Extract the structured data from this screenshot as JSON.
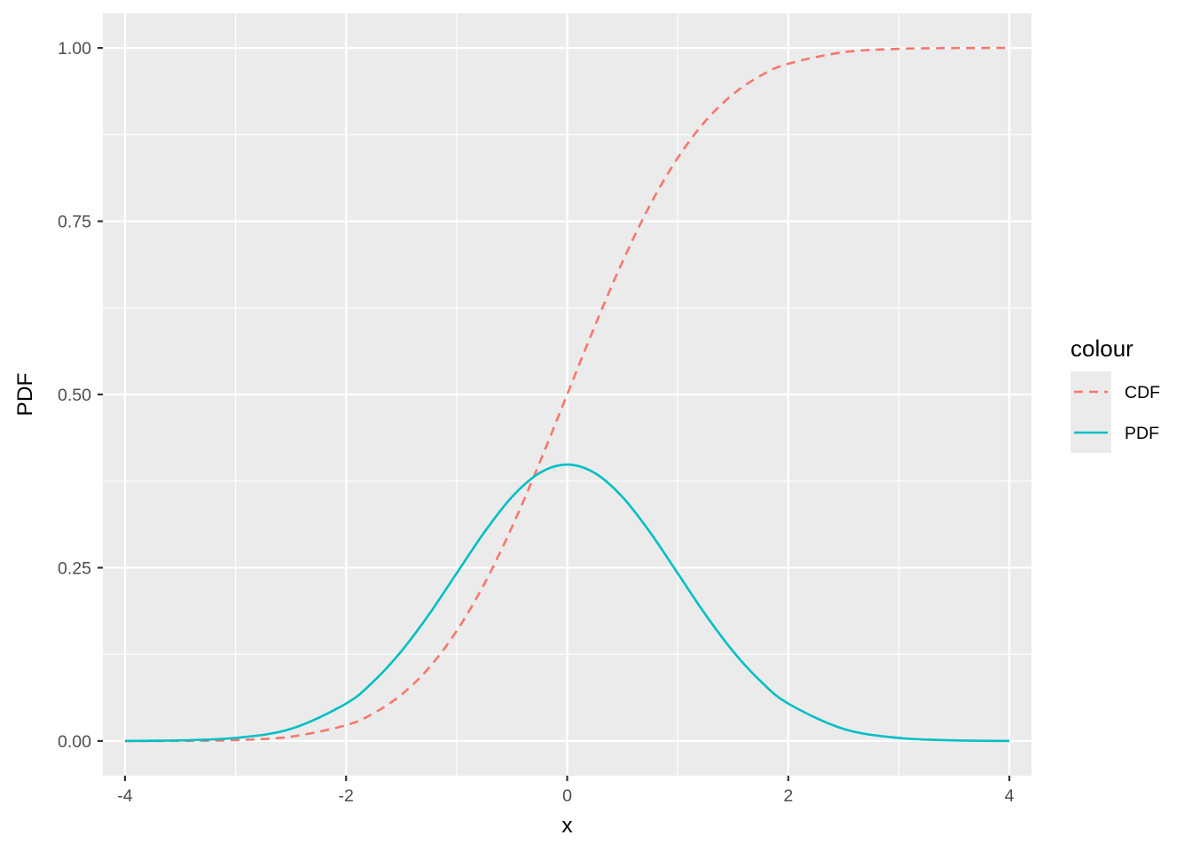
{
  "chart_data": {
    "type": "line",
    "title": "",
    "xlabel": "x",
    "ylabel": "PDF",
    "xlim": [
      -4.2,
      4.2
    ],
    "ylim": [
      -0.05,
      1.05
    ],
    "x_ticks": [
      -4,
      -2,
      0,
      2,
      4
    ],
    "x_tick_labels": [
      "-4",
      "-2",
      "0",
      "2",
      "4"
    ],
    "y_ticks": [
      0,
      0.25,
      0.5,
      0.75,
      1.0
    ],
    "y_tick_labels": [
      "0.00",
      "0.25",
      "0.50",
      "0.75",
      "1.00"
    ],
    "x_minor_ticks": [
      -3,
      -1,
      1,
      3
    ],
    "y_minor_ticks": [
      0.125,
      0.375,
      0.625,
      0.875
    ],
    "grid": true,
    "legend": {
      "title": "colour",
      "position": "right"
    },
    "x": [
      -4.0,
      -3.5,
      -3.0,
      -2.5,
      -2.0,
      -1.75,
      -1.5,
      -1.25,
      -1.0,
      -0.75,
      -0.5,
      -0.25,
      0.0,
      0.25,
      0.5,
      0.75,
      1.0,
      1.25,
      1.5,
      1.75,
      2.0,
      2.5,
      3.0,
      3.5,
      4.0
    ],
    "series": [
      {
        "name": "CDF",
        "color": "#F8766D",
        "dash": "dashed",
        "values": [
          0.0,
          0.0002,
          0.0013,
          0.0062,
          0.0228,
          0.0401,
          0.0668,
          0.1056,
          0.1587,
          0.2266,
          0.3085,
          0.4013,
          0.5,
          0.5987,
          0.6915,
          0.7734,
          0.8413,
          0.8944,
          0.9332,
          0.9599,
          0.9772,
          0.9938,
          0.9987,
          0.9998,
          1.0
        ]
      },
      {
        "name": "PDF",
        "color": "#00BFC4",
        "dash": "solid",
        "values": [
          0.0001,
          0.0009,
          0.0044,
          0.0175,
          0.054,
          0.0863,
          0.1295,
          0.1826,
          0.242,
          0.3011,
          0.3521,
          0.3867,
          0.3989,
          0.3867,
          0.3521,
          0.3011,
          0.242,
          0.1826,
          0.1295,
          0.0863,
          0.054,
          0.0175,
          0.0044,
          0.0009,
          0.0001
        ]
      }
    ]
  }
}
